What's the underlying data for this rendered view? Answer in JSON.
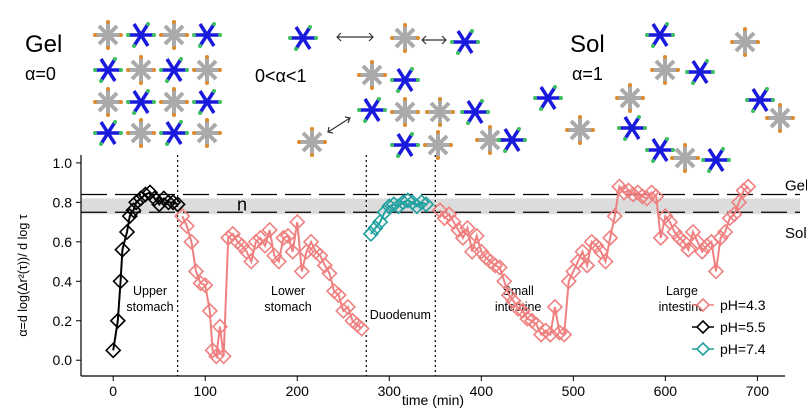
{
  "chart_data": {
    "type": "line",
    "ylabel": "α=d log(Δr²(τ))/ d log τ",
    "xlabel": "time (min)",
    "xlim": [
      -35,
      730
    ],
    "ylim": [
      -0.08,
      1.04
    ],
    "xticks": [
      0,
      100,
      200,
      300,
      400,
      500,
      600,
      700
    ],
    "yticks": [
      {
        "value": 0,
        "label": "0.0"
      },
      0.2,
      0.4,
      0.6,
      0.8,
      {
        "value": 1,
        "label": "1.0"
      }
    ],
    "band": [
      0.74,
      0.82
    ],
    "reference_lines": [
      0.84,
      0.75
    ],
    "boundaries": [
      70,
      275,
      350
    ],
    "band_label": "n",
    "upper_label": "Gel",
    "lower_label": "Sol",
    "regions": [
      [
        "Upper",
        "stomach"
      ],
      [
        "Lower",
        "stomach"
      ],
      [
        "Duodenum"
      ],
      [
        "Small",
        "intestine"
      ],
      [
        "Large",
        "intestine"
      ]
    ],
    "legend": "lower right",
    "series": [
      {
        "name": "pH=4.3",
        "color": "#f08080",
        "x": [
          75,
          80,
          85,
          90,
          95,
          100,
          105,
          108,
          112,
          116,
          120,
          125,
          130,
          135,
          140,
          145,
          150,
          155,
          160,
          165,
          170,
          175,
          180,
          185,
          190,
          195,
          200,
          205,
          210,
          215,
          220,
          225,
          230,
          235,
          240,
          245,
          250,
          255,
          260,
          265,
          270,
          310,
          355,
          360,
          365,
          370,
          375,
          380,
          385,
          390,
          395,
          400,
          405,
          410,
          415,
          420,
          425,
          430,
          435,
          440,
          445,
          450,
          455,
          460,
          465,
          470,
          475,
          480,
          485,
          490,
          495,
          500,
          505,
          510,
          515,
          520,
          525,
          530,
          535,
          540,
          545,
          550,
          555,
          560,
          565,
          570,
          575,
          580,
          585,
          590,
          595,
          600,
          605,
          610,
          615,
          620,
          625,
          630,
          635,
          640,
          645,
          650,
          655,
          660,
          665,
          670,
          675,
          680,
          685,
          690
        ],
        "values": [
          0.73,
          0.68,
          0.6,
          0.45,
          0.39,
          0.38,
          0.25,
          0.05,
          0.02,
          0.17,
          0.02,
          0.62,
          0.64,
          0.6,
          0.58,
          0.55,
          0.5,
          0.6,
          0.62,
          0.58,
          0.66,
          0.53,
          0.5,
          0.62,
          0.63,
          0.55,
          0.7,
          0.45,
          0.55,
          0.6,
          0.55,
          0.53,
          0.48,
          0.44,
          0.35,
          0.33,
          0.25,
          0.27,
          0.2,
          0.18,
          0.16,
          null,
          0.76,
          0.72,
          0.74,
          0.7,
          0.66,
          0.62,
          0.67,
          0.55,
          0.63,
          0.55,
          0.52,
          0.5,
          0.48,
          0.47,
          0.4,
          0.33,
          0.3,
          0.26,
          0.25,
          0.21,
          0.2,
          0.18,
          0.13,
          0.15,
          0.13,
          0.27,
          0.14,
          0.13,
          0.4,
          0.45,
          0.5,
          0.55,
          0.48,
          0.6,
          0.58,
          0.55,
          0.5,
          0.62,
          0.73,
          0.88,
          0.85,
          0.86,
          0.84,
          0.85,
          0.83,
          0.82,
          0.85,
          0.83,
          0.62,
          0.73,
          0.7,
          0.65,
          0.62,
          0.6,
          0.56,
          0.65,
          0.6,
          0.55,
          0.58,
          0.6,
          0.45,
          0.62,
          0.65,
          0.72,
          0.74,
          0.8,
          0.86,
          0.88
        ]
      },
      {
        "name": "pH=5.5",
        "color": "#000000",
        "x": [
          0,
          5,
          8,
          10,
          15,
          18,
          22,
          25,
          30,
          35,
          40,
          45,
          50,
          55,
          60,
          65,
          70
        ],
        "values": [
          0.05,
          0.2,
          0.4,
          0.56,
          0.65,
          0.73,
          0.76,
          0.8,
          0.82,
          0.84,
          0.85,
          0.82,
          0.79,
          0.82,
          0.8,
          0.8,
          0.79
        ]
      },
      {
        "name": "pH=7.4",
        "color": "#20a0a0",
        "x": [
          280,
          285,
          290,
          295,
          300,
          305,
          310,
          315,
          320,
          325,
          330,
          335,
          340
        ],
        "values": [
          0.64,
          0.67,
          0.7,
          0.75,
          0.78,
          0.79,
          0.78,
          0.8,
          0.81,
          0.8,
          0.78,
          0.8,
          0.79
        ]
      }
    ]
  },
  "illustration": {
    "gel_label": "Gel",
    "gel_alpha": "α=0",
    "mid_alpha": "0<α<1",
    "sol_label": "Sol",
    "sol_alpha": "α=1"
  }
}
